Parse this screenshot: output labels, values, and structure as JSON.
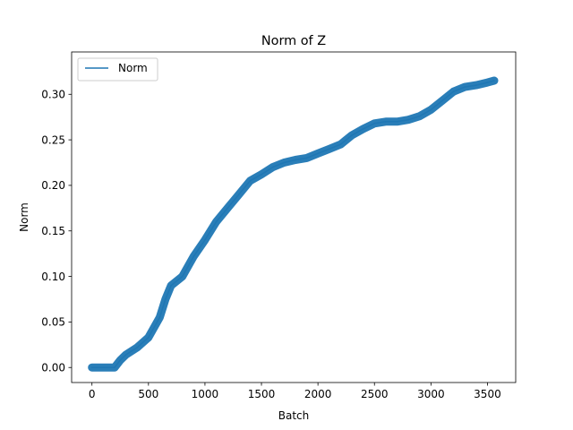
{
  "chart_data": {
    "type": "line",
    "title": "Norm of Z",
    "xlabel": "Batch",
    "ylabel": "Norm",
    "xlim": [
      -180,
      3750
    ],
    "ylim": [
      -0.0165,
      0.3465
    ],
    "xticks": [
      0,
      500,
      1000,
      1500,
      2000,
      2500,
      3000,
      3500
    ],
    "xtick_labels": [
      "0",
      "500",
      "1000",
      "1500",
      "2000",
      "2500",
      "3000",
      "3500"
    ],
    "yticks": [
      0.0,
      0.05,
      0.1,
      0.15,
      0.2,
      0.25,
      0.3
    ],
    "ytick_labels": [
      "0.00",
      "0.05",
      "0.10",
      "0.15",
      "0.20",
      "0.25",
      "0.30"
    ],
    "grid": false,
    "legend_position": "top-left",
    "series": [
      {
        "name": "Norm",
        "color": "#1f77b4",
        "x": [
          0,
          100,
          200,
          250,
          300,
          400,
          500,
          600,
          650,
          700,
          800,
          900,
          1000,
          1100,
          1200,
          1300,
          1400,
          1500,
          1600,
          1700,
          1800,
          1900,
          2000,
          2100,
          2200,
          2300,
          2400,
          2500,
          2600,
          2700,
          2800,
          2900,
          3000,
          3100,
          3200,
          3300,
          3400,
          3500,
          3560
        ],
        "y": [
          0.0,
          0.0,
          0.0,
          0.008,
          0.014,
          0.022,
          0.033,
          0.055,
          0.075,
          0.09,
          0.1,
          0.122,
          0.14,
          0.16,
          0.175,
          0.19,
          0.205,
          0.212,
          0.22,
          0.225,
          0.228,
          0.23,
          0.235,
          0.24,
          0.245,
          0.255,
          0.262,
          0.268,
          0.27,
          0.27,
          0.272,
          0.276,
          0.283,
          0.293,
          0.303,
          0.308,
          0.31,
          0.313,
          0.315
        ]
      }
    ]
  }
}
